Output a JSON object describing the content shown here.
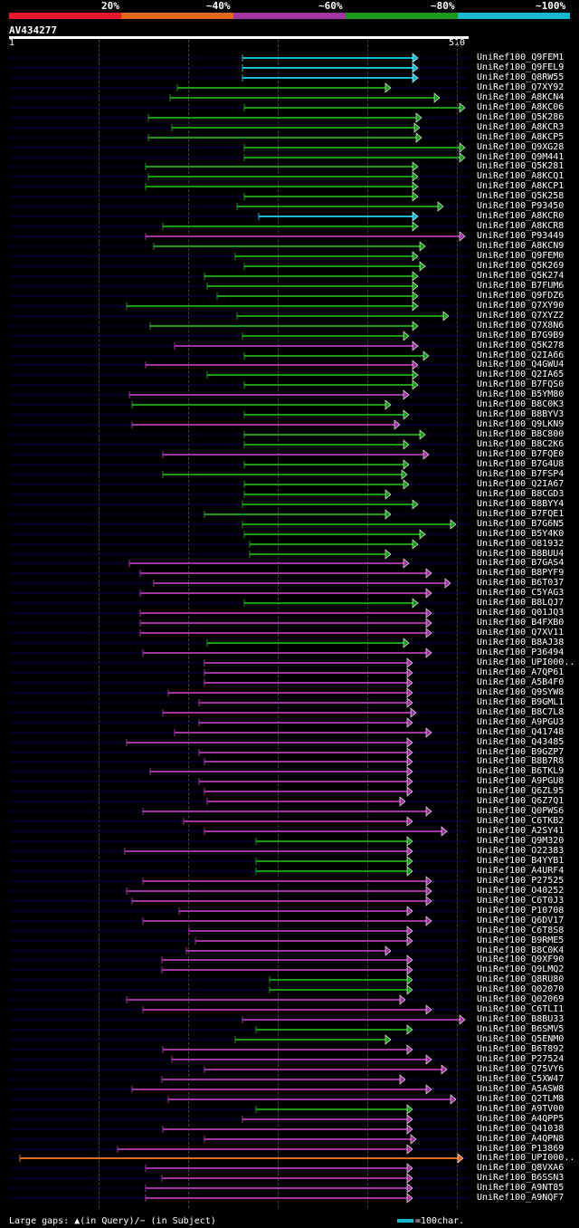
{
  "legend": {
    "labels": [
      "20%",
      "~40%",
      "~60%",
      "~80%",
      "~100%"
    ],
    "colors": [
      "#e8192c",
      "#e06a1a",
      "#a034a0",
      "#1a9a1a",
      "#18b8d0"
    ]
  },
  "query": {
    "name": "AV434277",
    "start": "1",
    "end": "510"
  },
  "footer": {
    "gaps_text": "Large gaps: ▲(in Query)/− (in Subject)",
    "scale_text": "=100char."
  },
  "hits": [
    {
      "name": "UniRef100_Q9FEM1",
      "c": 4,
      "s": 268,
      "e": 462
    },
    {
      "name": "UniRef100_Q9FEL9",
      "c": 4,
      "s": 268,
      "e": 462
    },
    {
      "name": "UniRef100_Q8RW55",
      "c": 4,
      "s": 268,
      "e": 462
    },
    {
      "name": "UniRef100_Q7XY92",
      "c": 3,
      "s": 196,
      "e": 432
    },
    {
      "name": "UniRef100_A8KCN4",
      "c": 3,
      "s": 188,
      "e": 486
    },
    {
      "name": "UniRef100_A8KC06",
      "c": 3,
      "s": 270,
      "e": 514
    },
    {
      "name": "UniRef100_Q5K286",
      "c": 3,
      "s": 164,
      "e": 466
    },
    {
      "name": "UniRef100_A8KCR3",
      "c": 3,
      "s": 190,
      "e": 464
    },
    {
      "name": "UniRef100_A8KCP5",
      "c": 3,
      "s": 164,
      "e": 466
    },
    {
      "name": "UniRef100_Q9XG28",
      "c": 3,
      "s": 270,
      "e": 514
    },
    {
      "name": "UniRef100_Q9M441",
      "c": 3,
      "s": 270,
      "e": 514
    },
    {
      "name": "UniRef100_Q5K281",
      "c": 3,
      "s": 161,
      "e": 462
    },
    {
      "name": "UniRef100_A8KCQ1",
      "c": 3,
      "s": 164,
      "e": 462
    },
    {
      "name": "UniRef100_A8KCP1",
      "c": 3,
      "s": 161,
      "e": 462
    },
    {
      "name": "UniRef100_Q5K258",
      "c": 3,
      "s": 270,
      "e": 462
    },
    {
      "name": "UniRef100_P93450",
      "c": 3,
      "s": 262,
      "e": 490
    },
    {
      "name": "UniRef100_A8KCR0",
      "c": 4,
      "s": 286,
      "e": 462
    },
    {
      "name": "UniRef100_A8KCR8",
      "c": 3,
      "s": 180,
      "e": 462
    },
    {
      "name": "UniRef100_P93449",
      "c": 2,
      "s": 161,
      "e": 514
    },
    {
      "name": "UniRef100_A8KCN9",
      "c": 3,
      "s": 170,
      "e": 470
    },
    {
      "name": "UniRef100_Q9FEM0",
      "c": 3,
      "s": 260,
      "e": 462
    },
    {
      "name": "UniRef100_Q5K269",
      "c": 3,
      "s": 270,
      "e": 470
    },
    {
      "name": "UniRef100_Q5K274",
      "c": 3,
      "s": 226,
      "e": 462
    },
    {
      "name": "UniRef100_B7FUM6",
      "c": 3,
      "s": 229,
      "e": 462
    },
    {
      "name": "UniRef100_Q9FDZ6",
      "c": 3,
      "s": 240,
      "e": 462
    },
    {
      "name": "UniRef100_Q7XY90",
      "c": 3,
      "s": 140,
      "e": 462
    },
    {
      "name": "UniRef100_Q7XYZ2",
      "c": 3,
      "s": 262,
      "e": 496
    },
    {
      "name": "UniRef100_Q7X8N6",
      "c": 3,
      "s": 166,
      "e": 462
    },
    {
      "name": "UniRef100_B7G9B9",
      "c": 3,
      "s": 268,
      "e": 452
    },
    {
      "name": "UniRef100_Q5K278",
      "c": 2,
      "s": 193,
      "e": 462
    },
    {
      "name": "UniRef100_Q2IA66",
      "c": 3,
      "s": 270,
      "e": 474
    },
    {
      "name": "UniRef100_Q4GWU4",
      "c": 2,
      "s": 161,
      "e": 462
    },
    {
      "name": "UniRef100_Q2IA65",
      "c": 3,
      "s": 229,
      "e": 462
    },
    {
      "name": "UniRef100_B7FQS0",
      "c": 3,
      "s": 270,
      "e": 462
    },
    {
      "name": "UniRef100_B5YM80",
      "c": 2,
      "s": 143,
      "e": 452
    },
    {
      "name": "UniRef100_B8C0K3",
      "c": 3,
      "s": 146,
      "e": 432
    },
    {
      "name": "UniRef100_B8BYV3",
      "c": 3,
      "s": 270,
      "e": 452
    },
    {
      "name": "UniRef100_Q9LKN9",
      "c": 2,
      "s": 146,
      "e": 442
    },
    {
      "name": "UniRef100_B8C800",
      "c": 3,
      "s": 270,
      "e": 470
    },
    {
      "name": "UniRef100_B8C2K6",
      "c": 3,
      "s": 270,
      "e": 452
    },
    {
      "name": "UniRef100_B7FQE0",
      "c": 2,
      "s": 180,
      "e": 474
    },
    {
      "name": "UniRef100_B7G4U8",
      "c": 3,
      "s": 270,
      "e": 452
    },
    {
      "name": "UniRef100_B7FSP4",
      "c": 3,
      "s": 180,
      "e": 450
    },
    {
      "name": "UniRef100_Q2IA67",
      "c": 3,
      "s": 270,
      "e": 452
    },
    {
      "name": "UniRef100_B8CGD3",
      "c": 3,
      "s": 270,
      "e": 432
    },
    {
      "name": "UniRef100_B8BYY4",
      "c": 3,
      "s": 268,
      "e": 462
    },
    {
      "name": "UniRef100_B7FQE1",
      "c": 3,
      "s": 226,
      "e": 432
    },
    {
      "name": "UniRef100_B7G6N5",
      "c": 3,
      "s": 268,
      "e": 504
    },
    {
      "name": "UniRef100_B5Y4K0",
      "c": 3,
      "s": 270,
      "e": 470
    },
    {
      "name": "UniRef100_O81932",
      "c": 3,
      "s": 276,
      "e": 462
    },
    {
      "name": "UniRef100_B8BUU4",
      "c": 3,
      "s": 276,
      "e": 432
    },
    {
      "name": "UniRef100_B7GAS4",
      "c": 2,
      "s": 143,
      "e": 452
    },
    {
      "name": "UniRef100_B8PYF9",
      "c": 2,
      "s": 155,
      "e": 477
    },
    {
      "name": "UniRef100_B6T037",
      "c": 2,
      "s": 170,
      "e": 498
    },
    {
      "name": "UniRef100_C5YAG3",
      "c": 2,
      "s": 155,
      "e": 477
    },
    {
      "name": "UniRef100_B8LQJ7",
      "c": 3,
      "s": 270,
      "e": 462
    },
    {
      "name": "UniRef100_Q01JQ3",
      "c": 2,
      "s": 155,
      "e": 477
    },
    {
      "name": "UniRef100_B4FXB0",
      "c": 2,
      "s": 155,
      "e": 477
    },
    {
      "name": "UniRef100_Q7XV11",
      "c": 2,
      "s": 155,
      "e": 477
    },
    {
      "name": "UniRef100_B8AJ38",
      "c": 3,
      "s": 229,
      "e": 452
    },
    {
      "name": "UniRef100_P36494",
      "c": 2,
      "s": 158,
      "e": 477
    },
    {
      "name": "UniRef100_UPI000..",
      "c": 2,
      "s": 226,
      "e": 456
    },
    {
      "name": "UniRef100_A7QP61",
      "c": 2,
      "s": 226,
      "e": 456
    },
    {
      "name": "UniRef100_A5B4F0",
      "c": 2,
      "s": 226,
      "e": 456
    },
    {
      "name": "UniRef100_Q9SYW8",
      "c": 2,
      "s": 186,
      "e": 456
    },
    {
      "name": "UniRef100_B9GML1",
      "c": 2,
      "s": 220,
      "e": 456
    },
    {
      "name": "UniRef100_B8C7L8",
      "c": 2,
      "s": 180,
      "e": 460
    },
    {
      "name": "UniRef100_A9PGU3",
      "c": 2,
      "s": 220,
      "e": 456
    },
    {
      "name": "UniRef100_Q41748",
      "c": 2,
      "s": 193,
      "e": 477
    },
    {
      "name": "UniRef100_Q43485",
      "c": 2,
      "s": 140,
      "e": 456
    },
    {
      "name": "UniRef100_B9GZP7",
      "c": 2,
      "s": 220,
      "e": 456
    },
    {
      "name": "UniRef100_B8B7R8",
      "c": 2,
      "s": 226,
      "e": 456
    },
    {
      "name": "UniRef100_B6TKL9",
      "c": 2,
      "s": 166,
      "e": 456
    },
    {
      "name": "UniRef100_A9PGU8",
      "c": 2,
      "s": 220,
      "e": 456
    },
    {
      "name": "UniRef100_Q6ZL95",
      "c": 2,
      "s": 226,
      "e": 456
    },
    {
      "name": "UniRef100_Q6Z7Q1",
      "c": 2,
      "s": 229,
      "e": 448
    },
    {
      "name": "UniRef100_Q0PWS6",
      "c": 2,
      "s": 158,
      "e": 477
    },
    {
      "name": "UniRef100_C6TKB2",
      "c": 2,
      "s": 203,
      "e": 456
    },
    {
      "name": "UniRef100_A2SY41",
      "c": 2,
      "s": 226,
      "e": 494
    },
    {
      "name": "UniRef100_Q9M320",
      "c": 3,
      "s": 283,
      "e": 456
    },
    {
      "name": "UniRef100_O22383",
      "c": 2,
      "s": 138,
      "e": 456
    },
    {
      "name": "UniRef100_B4YYB1",
      "c": 3,
      "s": 283,
      "e": 456
    },
    {
      "name": "UniRef100_A4URF4",
      "c": 3,
      "s": 283,
      "e": 456
    },
    {
      "name": "UniRef100_P27525",
      "c": 2,
      "s": 158,
      "e": 477
    },
    {
      "name": "UniRef100_O40252",
      "c": 2,
      "s": 140,
      "e": 477
    },
    {
      "name": "UniRef100_C6T0J3",
      "c": 2,
      "s": 146,
      "e": 477
    },
    {
      "name": "UniRef100_P10708",
      "c": 2,
      "s": 198,
      "e": 456
    },
    {
      "name": "UniRef100_Q6DV17",
      "c": 2,
      "s": 158,
      "e": 477
    },
    {
      "name": "UniRef100_C6T8S8",
      "c": 2,
      "s": 209,
      "e": 456
    },
    {
      "name": "UniRef100_B9RME5",
      "c": 2,
      "s": 216,
      "e": 456
    },
    {
      "name": "UniRef100_B8C0K4",
      "c": 2,
      "s": 206,
      "e": 432
    },
    {
      "name": "UniRef100_Q9XF90",
      "c": 2,
      "s": 179,
      "e": 456
    },
    {
      "name": "UniRef100_Q9LMQ2",
      "c": 2,
      "s": 179,
      "e": 456
    },
    {
      "name": "UniRef100_Q8RU80",
      "c": 3,
      "s": 298,
      "e": 456
    },
    {
      "name": "UniRef100_Q02070",
      "c": 3,
      "s": 298,
      "e": 456
    },
    {
      "name": "UniRef100_Q02069",
      "c": 2,
      "s": 140,
      "e": 448
    },
    {
      "name": "UniRef100_C6TLI1",
      "c": 2,
      "s": 158,
      "e": 477
    },
    {
      "name": "UniRef100_B8BU33",
      "c": 2,
      "s": 268,
      "e": 514
    },
    {
      "name": "UniRef100_B6SMV5",
      "c": 3,
      "s": 283,
      "e": 456
    },
    {
      "name": "UniRef100_Q5ENM0",
      "c": 3,
      "s": 260,
      "e": 432
    },
    {
      "name": "UniRef100_B6T892",
      "c": 2,
      "s": 180,
      "e": 456
    },
    {
      "name": "UniRef100_P27524",
      "c": 2,
      "s": 190,
      "e": 477
    },
    {
      "name": "UniRef100_Q75VY6",
      "c": 2,
      "s": 226,
      "e": 494
    },
    {
      "name": "UniRef100_C5XW47",
      "c": 2,
      "s": 179,
      "e": 448
    },
    {
      "name": "UniRef100_A5ASW8",
      "c": 2,
      "s": 146,
      "e": 477
    },
    {
      "name": "UniRef100_Q2TLM8",
      "c": 2,
      "s": 186,
      "e": 504
    },
    {
      "name": "UniRef100_A9TV00",
      "c": 3,
      "s": 283,
      "e": 456
    },
    {
      "name": "UniRef100_A4QPP5",
      "c": 2,
      "s": 268,
      "e": 456
    },
    {
      "name": "UniRef100_Q41038",
      "c": 2,
      "s": 180,
      "e": 456
    },
    {
      "name": "UniRef100_A4QPN8",
      "c": 2,
      "s": 226,
      "e": 460
    },
    {
      "name": "UniRef100_P13869",
      "c": 2,
      "s": 130,
      "e": 456
    },
    {
      "name": "UniRef100_UPI000..",
      "c": 1,
      "s": 22,
      "e": 512
    },
    {
      "name": "UniRef100_Q8VXA6",
      "c": 2,
      "s": 161,
      "e": 456
    },
    {
      "name": "UniRef100_B6SSN3",
      "c": 2,
      "s": 179,
      "e": 456
    },
    {
      "name": "UniRef100_A9NT85",
      "c": 2,
      "s": 161,
      "e": 456
    },
    {
      "name": "UniRef100_A9NQF7",
      "c": 2,
      "s": 161,
      "e": 456
    }
  ]
}
